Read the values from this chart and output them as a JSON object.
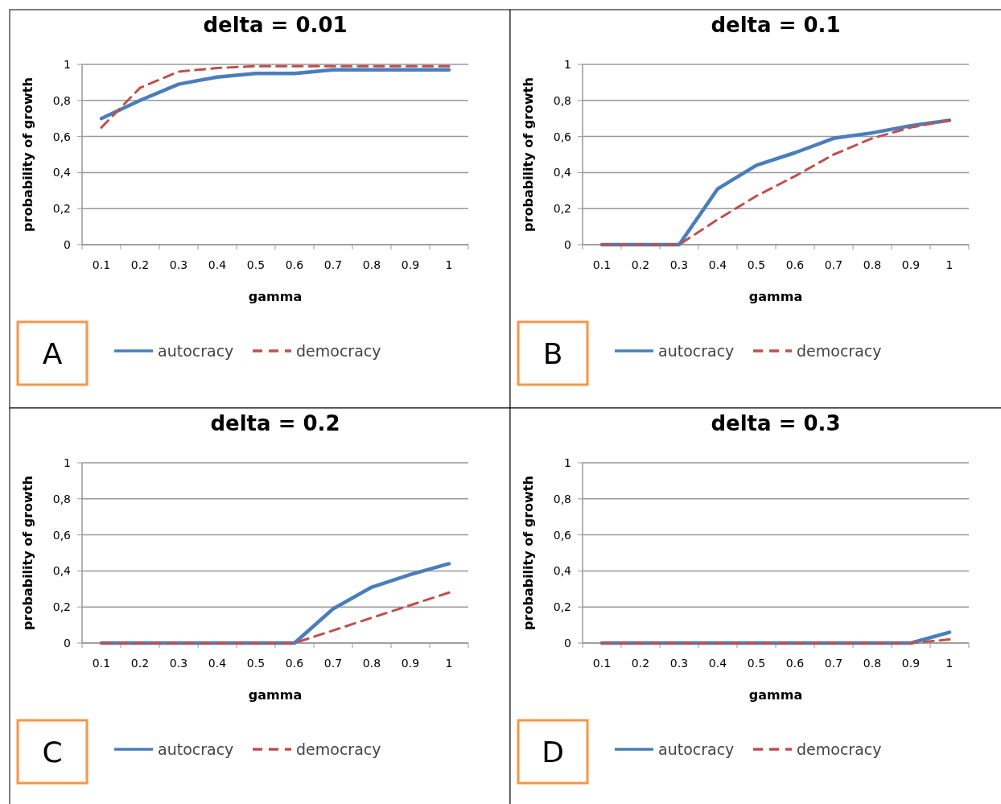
{
  "chart_data": [
    {
      "type": "line",
      "title": "delta = 0.01",
      "xlabel": "gamma",
      "ylabel": "probability of growth",
      "categories": [
        "0.1",
        "0.2",
        "0.3",
        "0.4",
        "0.5",
        "0.6",
        "0.7",
        "0.8",
        "0.9",
        "1"
      ],
      "ylim": [
        0,
        1
      ],
      "yticks": [
        {
          "value": 0,
          "label": "0"
        },
        {
          "value": 0.2,
          "label": "0,2"
        },
        {
          "value": 0.4,
          "label": "0,4"
        },
        {
          "value": 0.6,
          "label": "0,6"
        },
        {
          "value": 0.8,
          "label": "0,8"
        },
        {
          "value": 1,
          "label": "1"
        }
      ],
      "grid": "y",
      "legend": "bottom",
      "annotations": [
        "A"
      ],
      "series": [
        {
          "name": "autocracy",
          "color": "#4a7ebb",
          "line_style": "solid",
          "values": [
            0.7,
            0.8,
            0.89,
            0.93,
            0.95,
            0.95,
            0.97,
            0.97,
            0.97,
            0.97
          ]
        },
        {
          "name": "democracy",
          "color": "#c0504d",
          "line_style": "dashed",
          "values": [
            0.65,
            0.87,
            0.96,
            0.98,
            0.99,
            0.99,
            0.99,
            0.99,
            0.99,
            0.99
          ]
        }
      ]
    },
    {
      "type": "line",
      "title": "delta = 0.1",
      "xlabel": "gamma",
      "ylabel": "probability of growth",
      "categories": [
        "0.1",
        "0.2",
        "0.3",
        "0.4",
        "0.5",
        "0.6",
        "0.7",
        "0.8",
        "0.9",
        "1"
      ],
      "ylim": [
        0,
        1
      ],
      "yticks": [
        {
          "value": 0,
          "label": "0"
        },
        {
          "value": 0.2,
          "label": "0,2"
        },
        {
          "value": 0.4,
          "label": "0,4"
        },
        {
          "value": 0.6,
          "label": "0,6"
        },
        {
          "value": 0.8,
          "label": "0,8"
        },
        {
          "value": 1,
          "label": "1"
        }
      ],
      "grid": "y",
      "legend": "bottom",
      "annotations": [
        "B"
      ],
      "series": [
        {
          "name": "autocracy",
          "color": "#4a7ebb",
          "line_style": "solid",
          "values": [
            0,
            0,
            0,
            0.31,
            0.44,
            0.51,
            0.59,
            0.62,
            0.66,
            0.69
          ]
        },
        {
          "name": "democracy",
          "color": "#c0504d",
          "line_style": "dashed",
          "values": [
            0,
            0,
            0,
            0.14,
            0.27,
            0.38,
            0.5,
            0.59,
            0.65,
            0.69
          ]
        }
      ]
    },
    {
      "type": "line",
      "title": "delta = 0.2",
      "xlabel": "gamma",
      "ylabel": "probability of growth",
      "categories": [
        "0.1",
        "0.2",
        "0.3",
        "0.4",
        "0.5",
        "0.6",
        "0.7",
        "0.8",
        "0.9",
        "1"
      ],
      "ylim": [
        0,
        1
      ],
      "yticks": [
        {
          "value": 0,
          "label": "0"
        },
        {
          "value": 0.2,
          "label": "0,2"
        },
        {
          "value": 0.4,
          "label": "0,4"
        },
        {
          "value": 0.6,
          "label": "0,6"
        },
        {
          "value": 0.8,
          "label": "0,8"
        },
        {
          "value": 1,
          "label": "1"
        }
      ],
      "grid": "y",
      "legend": "bottom",
      "annotations": [
        "C"
      ],
      "series": [
        {
          "name": "autocracy",
          "color": "#4a7ebb",
          "line_style": "solid",
          "values": [
            0,
            0,
            0,
            0,
            0,
            0,
            0.19,
            0.31,
            0.38,
            0.44
          ]
        },
        {
          "name": "democracy",
          "color": "#c0504d",
          "line_style": "dashed",
          "values": [
            0,
            0,
            0,
            0,
            0,
            0,
            0.07,
            0.14,
            0.21,
            0.28
          ]
        }
      ]
    },
    {
      "type": "line",
      "title": "delta = 0.3",
      "xlabel": "gamma",
      "ylabel": "probability of growth",
      "categories": [
        "0.1",
        "0.2",
        "0.3",
        "0.4",
        "0.5",
        "0.6",
        "0.7",
        "0.8",
        "0.9",
        "1"
      ],
      "ylim": [
        0,
        1
      ],
      "yticks": [
        {
          "value": 0,
          "label": "0"
        },
        {
          "value": 0.2,
          "label": "0,2"
        },
        {
          "value": 0.4,
          "label": "0,4"
        },
        {
          "value": 0.6,
          "label": "0,6"
        },
        {
          "value": 0.8,
          "label": "0,8"
        },
        {
          "value": 1,
          "label": "1"
        }
      ],
      "grid": "y",
      "legend": "bottom",
      "annotations": [
        "D"
      ],
      "series": [
        {
          "name": "autocracy",
          "color": "#4a7ebb",
          "line_style": "solid",
          "values": [
            0,
            0,
            0,
            0,
            0,
            0,
            0,
            0,
            0,
            0.06
          ]
        },
        {
          "name": "democracy",
          "color": "#c0504d",
          "line_style": "dashed",
          "values": [
            0,
            0,
            0,
            0,
            0,
            0,
            0,
            0,
            0,
            0.02
          ]
        }
      ]
    }
  ]
}
